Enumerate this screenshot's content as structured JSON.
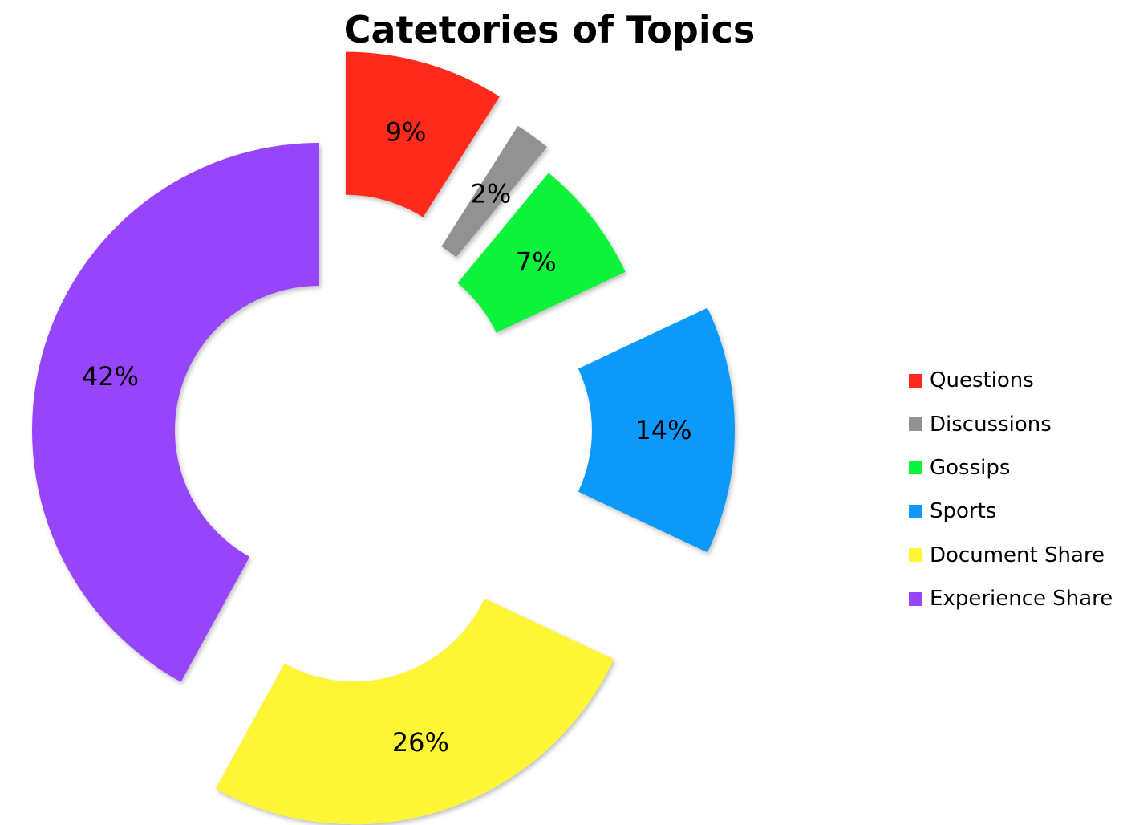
{
  "chart_data": {
    "type": "pie",
    "subtype": "doughnut-exploded",
    "title": "Catetories of Topics",
    "legend_position": "right",
    "slices": [
      {
        "label": "Questions",
        "value": 9,
        "display": "9%",
        "color": "#FF2A1F"
      },
      {
        "label": "Discussions",
        "value": 2,
        "display": "2%",
        "color": "#929292"
      },
      {
        "label": "Gossips",
        "value": 7,
        "display": "7%",
        "color": "#0DF23A"
      },
      {
        "label": "Sports",
        "value": 14,
        "display": "14%",
        "color": "#1199FA"
      },
      {
        "label": "Document Share",
        "value": 26,
        "display": "26%",
        "color": "#FDF536"
      },
      {
        "label": "Experience Share",
        "value": 42,
        "display": "42%",
        "color": "#9645FB"
      }
    ]
  }
}
